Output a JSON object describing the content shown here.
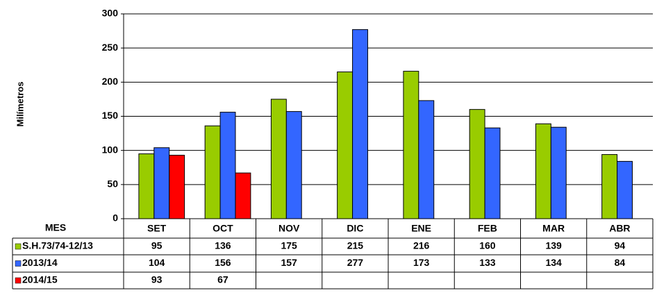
{
  "chart_data": {
    "type": "bar",
    "y_label": "Milímetros",
    "x_label": "MES",
    "categories": [
      "SET",
      "OCT",
      "NOV",
      "DIC",
      "ENE",
      "FEB",
      "MAR",
      "ABR"
    ],
    "series": [
      {
        "name": "S.H.73/74-12/13",
        "color": "#99cc00",
        "values": [
          95,
          136,
          175,
          215,
          216,
          160,
          139,
          94
        ]
      },
      {
        "name": "2013/14",
        "color": "#3366ff",
        "values": [
          104,
          156,
          157,
          277,
          173,
          133,
          134,
          84
        ]
      },
      {
        "name": "2014/15",
        "color": "#ff0000",
        "values": [
          93,
          67,
          null,
          null,
          null,
          null,
          null,
          null
        ]
      }
    ],
    "ylim": [
      0,
      300
    ],
    "yticks": [
      0,
      50,
      100,
      150,
      200,
      250,
      300
    ],
    "grid": true
  }
}
